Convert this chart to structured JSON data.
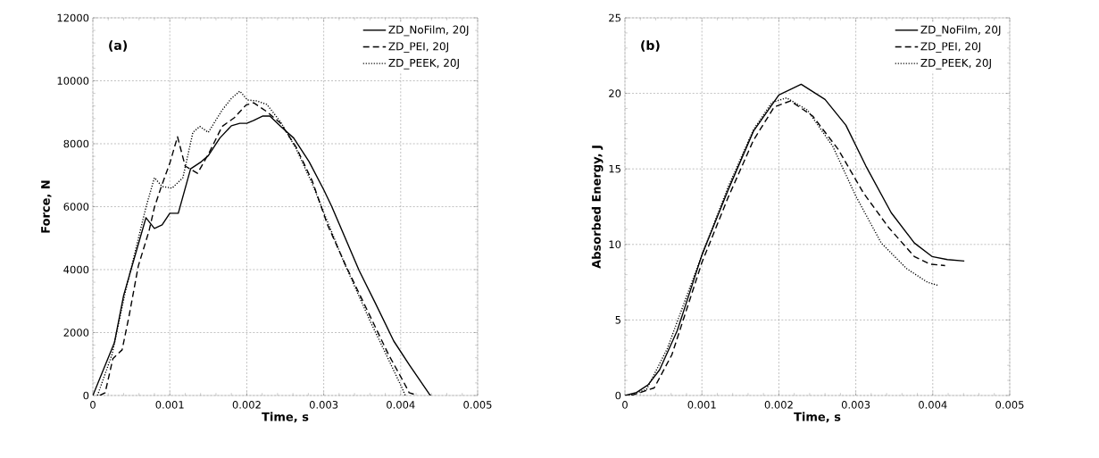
{
  "chart_data": [
    {
      "type": "line",
      "xlabel": "Time, s",
      "ylabel": "Force, N",
      "annotations": [
        "(a)"
      ],
      "xlim": [
        0,
        0.005
      ],
      "ylim": [
        0,
        12000
      ],
      "xticks": [
        0,
        0.001,
        0.002,
        0.003,
        0.004,
        0.005
      ],
      "yticks": [
        0,
        2000,
        4000,
        6000,
        8000,
        10000,
        12000
      ],
      "grid": true,
      "legend": "top right",
      "series": [
        {
          "name": "ZD_NoFilm, 20J",
          "color": "#000000",
          "line_style": "solid",
          "x": [
            0,
            0.00028,
            0.0004,
            0.00069,
            0.0008,
            0.0009,
            0.001,
            0.00111,
            0.00127,
            0.00141,
            0.0015,
            0.00165,
            0.0018,
            0.00191,
            0.002,
            0.00209,
            0.00221,
            0.0023,
            0.00244,
            0.00261,
            0.00281,
            0.003,
            0.0031,
            0.00346,
            0.00367,
            0.00391,
            0.00411,
            0.00437,
            0.00439
          ],
          "values": [
            0,
            1680,
            3180,
            5650,
            5310,
            5420,
            5790,
            5790,
            7200,
            7430,
            7620,
            8180,
            8570,
            8650,
            8650,
            8740,
            8880,
            8880,
            8550,
            8180,
            7430,
            6540,
            6030,
            3970,
            2940,
            1730,
            980,
            50,
            0
          ]
        },
        {
          "name": "ZD_PEI, 20J",
          "color": "#000000",
          "line_style": "dashed",
          "x": [
            9e-05,
            0.00016,
            0.00026,
            0.00038,
            0.00047,
            0.00059,
            0.00073,
            0.0008,
            0.00089,
            0.001,
            0.0011,
            0.0012,
            0.00136,
            0.00151,
            0.00168,
            0.00184,
            0.00199,
            0.00209,
            0.00226,
            0.00244,
            0.00264,
            0.00285,
            0.00305,
            0.00329,
            0.00363,
            0.00384,
            0.00404,
            0.00411,
            0.0042
          ],
          "values": [
            0,
            90,
            1170,
            1450,
            2520,
            4110,
            5230,
            5980,
            6640,
            7380,
            8220,
            7290,
            7060,
            7710,
            8550,
            8830,
            9230,
            9300,
            9020,
            8650,
            7900,
            6820,
            5420,
            4110,
            2380,
            1310,
            420,
            90,
            20
          ]
        },
        {
          "name": "ZD_PEEK, 20J",
          "color": "#000000",
          "line_style": "dotted",
          "x": [
            6e-05,
            0.00025,
            0.00042,
            0.00069,
            0.0008,
            0.0009,
            0.00103,
            0.00117,
            0.0013,
            0.00139,
            0.0015,
            0.00168,
            0.0018,
            0.00191,
            0.00201,
            0.00213,
            0.00226,
            0.00244,
            0.00264,
            0.00285,
            0.00302,
            0.00326,
            0.0036,
            0.0038,
            0.00401,
            0.00406
          ],
          "values": [
            0,
            1310,
            3270,
            5980,
            6920,
            6640,
            6590,
            6920,
            8360,
            8550,
            8360,
            9070,
            9440,
            9670,
            9390,
            9360,
            9250,
            8690,
            7850,
            6730,
            5700,
            4250,
            2380,
            1360,
            280,
            0
          ]
        }
      ]
    },
    {
      "type": "line",
      "xlabel": "Time, s",
      "ylabel": "Absorbed Energy, J",
      "annotations": [
        "(b)"
      ],
      "xlim": [
        0,
        0.005
      ],
      "ylim": [
        0,
        25
      ],
      "xticks": [
        0,
        0.001,
        0.002,
        0.003,
        0.004,
        0.005
      ],
      "yticks": [
        0,
        5,
        10,
        15,
        20,
        25
      ],
      "grid": true,
      "legend": "top right",
      "series": [
        {
          "name": "ZD_NoFilm, 20J",
          "color": "#000000",
          "line_style": "solid",
          "x": [
            0,
            0.00015,
            0.0003,
            0.00045,
            0.00068,
            0.001,
            0.00134,
            0.00167,
            0.002,
            0.00229,
            0.0026,
            0.00287,
            0.00313,
            0.00346,
            0.00376,
            0.00399,
            0.00419,
            0.00441
          ],
          "values": [
            0,
            0.2,
            0.7,
            1.7,
            4.3,
            9.3,
            13.6,
            17.5,
            19.9,
            20.6,
            19.6,
            17.9,
            15.2,
            12.1,
            10.1,
            9.2,
            9.0,
            8.9
          ]
        },
        {
          "name": "ZD_PEI, 20J",
          "color": "#000000",
          "line_style": "dashed",
          "x": [
            8e-05,
            0.00038,
            0.00061,
            0.001,
            0.00134,
            0.00167,
            0.00194,
            0.00215,
            0.00244,
            0.00277,
            0.0031,
            0.00343,
            0.00376,
            0.00396,
            0.00416
          ],
          "values": [
            0,
            0.5,
            2.7,
            8.8,
            13.1,
            16.9,
            19.1,
            19.5,
            18.5,
            16.3,
            13.4,
            11.1,
            9.2,
            8.7,
            8.6
          ]
        },
        {
          "name": "ZD_PEEK, 20J",
          "color": "#000000",
          "line_style": "dotted",
          "x": [
            5e-05,
            0.00028,
            0.00055,
            0.001,
            0.00134,
            0.00167,
            0.00191,
            0.0021,
            0.00237,
            0.0027,
            0.003,
            0.00333,
            0.00366,
            0.00393,
            0.00406
          ],
          "values": [
            0,
            0.4,
            3.1,
            9.3,
            13.8,
            17.6,
            19.4,
            19.7,
            18.9,
            16.5,
            13.2,
            10.1,
            8.4,
            7.5,
            7.3
          ]
        }
      ]
    }
  ]
}
